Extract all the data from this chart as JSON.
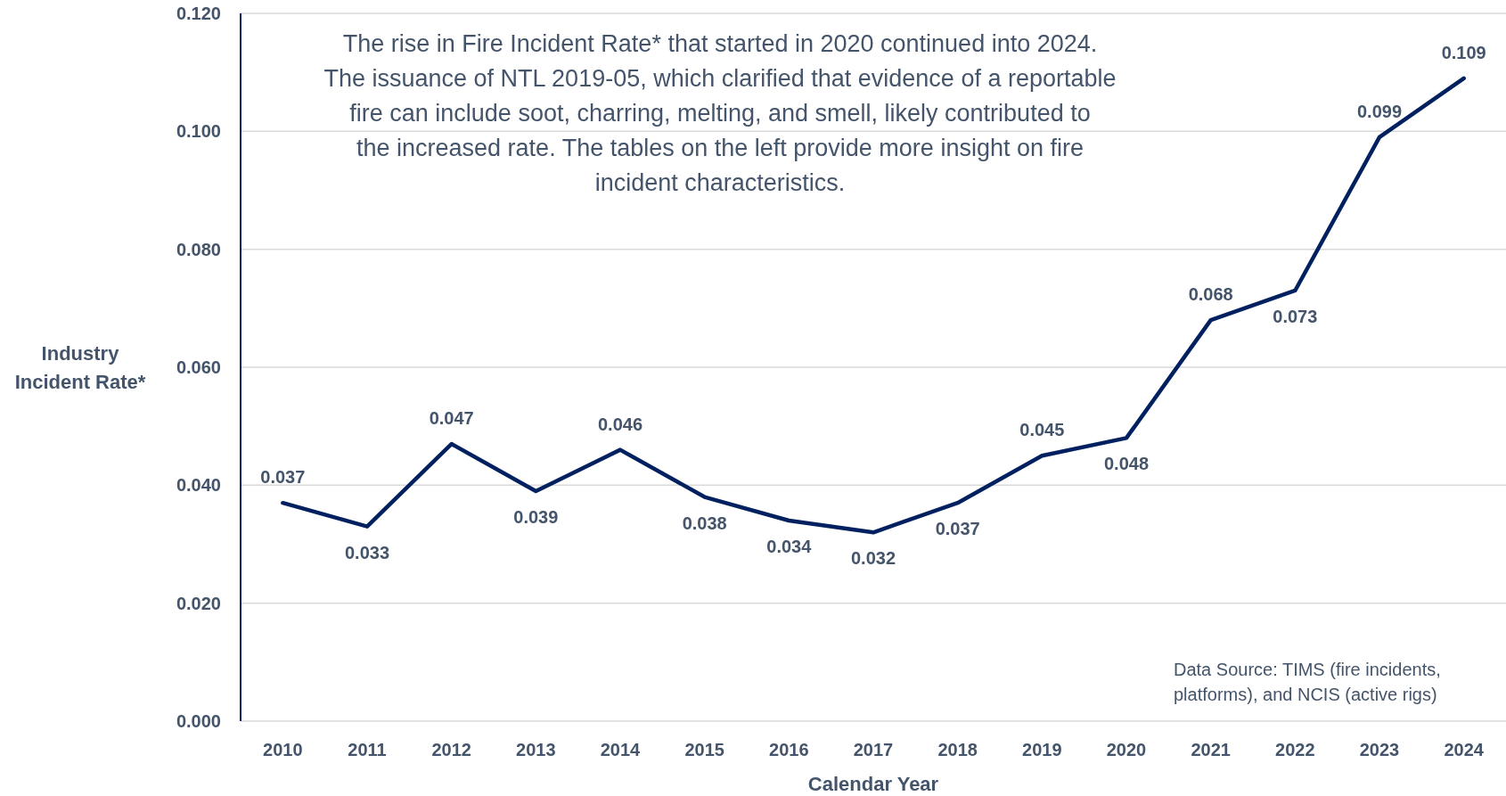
{
  "chart_data": {
    "type": "line",
    "xlabel": "Calendar Year",
    "ylabel": "Industry Incident Rate*",
    "categories": [
      "2010",
      "2011",
      "2012",
      "2013",
      "2014",
      "2015",
      "2016",
      "2017",
      "2018",
      "2019",
      "2020",
      "2021",
      "2022",
      "2023",
      "2024"
    ],
    "series": [
      {
        "color": "#002060",
        "values": [
          0.037,
          0.033,
          0.047,
          0.039,
          0.046,
          0.038,
          0.034,
          0.032,
          0.037,
          0.045,
          0.048,
          0.068,
          0.073,
          0.099,
          0.109
        ]
      }
    ],
    "ylim": [
      0,
      0.12
    ],
    "yticks": [
      {
        "value": 0,
        "label": "0.000"
      },
      {
        "value": 0.02,
        "label": "0.020"
      },
      {
        "value": 0.04,
        "label": "0.040"
      },
      {
        "value": 0.06,
        "label": "0.060"
      },
      {
        "value": 0.08,
        "label": "0.080"
      },
      {
        "value": 0.1,
        "label": "0.100"
      },
      {
        "value": 0.12,
        "label": "0.120"
      }
    ],
    "grid": "y",
    "data_labels": true,
    "marker": "none",
    "line_style": "solid",
    "annotations": [
      "The rise in Fire Incident Rate* that started in 2020 continued into 2024. The issuance of NTL 2019-05, which clarified that evidence of a reportable fire can include soot, charring, melting, and smell, likely contributed to the increased rate. The tables on the left provide more insight on fire incident characteristics.",
      "Data Source: TIMS (fire incidents, platforms), and NCIS (active rigs)"
    ]
  }
}
